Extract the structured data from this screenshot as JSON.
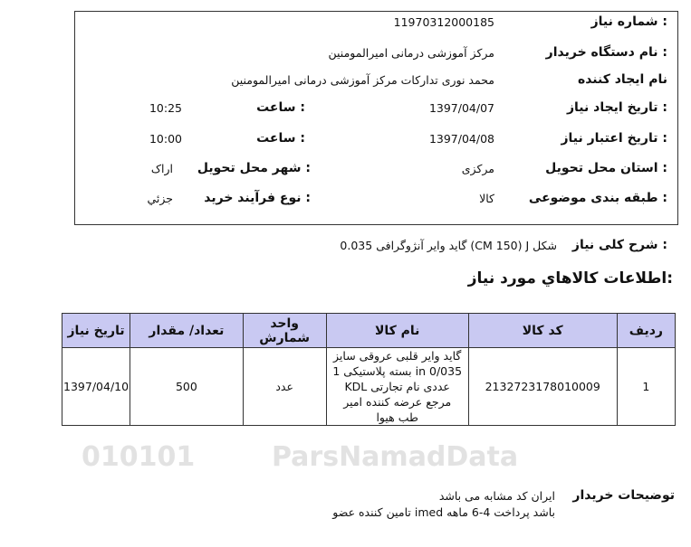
{
  "watermark": {
    "text": "ParsNamadData",
    "digits": "010101"
  },
  "info": {
    "need_number_label": "شماره نیاز :",
    "need_number": "11970312000185",
    "buyer_org_label": "نام دستگاه خریدار :",
    "buyer_org": "مرکز آموزشی درمانی امیرالمومنین",
    "creator_label": "نام ایجاد کننده",
    "creator": "محمد نوری تدارکات مرکز آموزشی درمانی امیرالمومنین",
    "created_date_label": "تاریخ ایجاد نیاز :",
    "created_date": "1397/04/07",
    "created_time_label": "ساعت :",
    "created_time": "10:25",
    "valid_date_label": "تاریخ اعتبار نیاز :",
    "valid_date": "1397/04/08",
    "valid_time_label": "ساعت :",
    "valid_time": "10:00",
    "province_label": "استان محل تحویل :",
    "province": "مرکزی",
    "city_label": "شهر محل تحویل :",
    "city": "اراک",
    "category_label": "طبقه بندی موضوعی :",
    "category": "کالا",
    "process_label": "نوع فرآیند خرید :",
    "process": "جزئي"
  },
  "summary": {
    "label": "شرح کلی نیاز :",
    "value": "گاید وایر آنژوگرافی 0.035 (CM 150) J شکل"
  },
  "section_title": "اطلاعات کالاهاي مورد نیاز:",
  "table": {
    "headers": [
      "ردیف",
      "کد کالا",
      "نام کالا",
      "واحد شمارش",
      "تعداد/ مقدار",
      "تاریخ نیاز"
    ],
    "rows": [
      [
        "1",
        "2132723178010009",
        "گاید وایر قلبی عروقی سایز in 0/035 بسته پلاستیکی 1 عددی نام تجارتی KDL مرجع عرضه کننده امیر طب هیوا",
        "عدد",
        "500",
        "1397/04/10"
      ]
    ]
  },
  "notes": {
    "label": "توضیحات خریدار",
    "lines": [
      "ایران کد مشابه می باشد",
      "تامین کننده عضو imed باشد پرداخت 4-6 ماهه"
    ]
  }
}
